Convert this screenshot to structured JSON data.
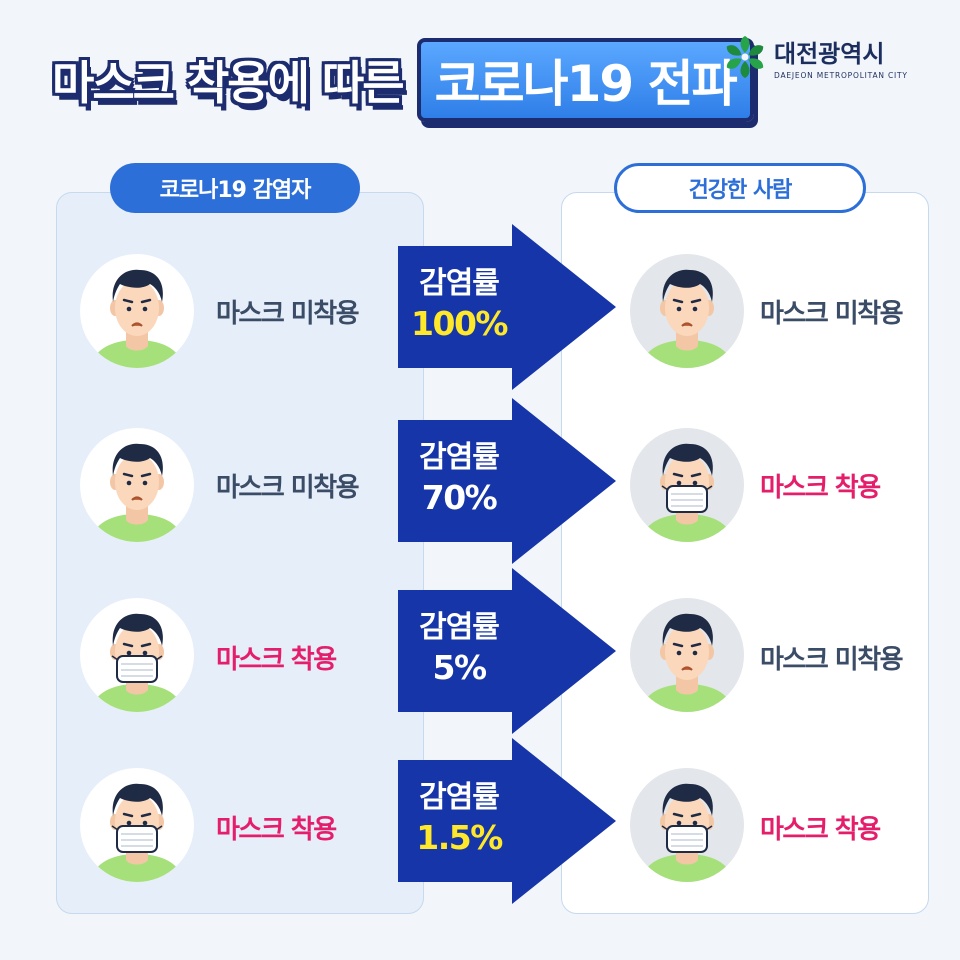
{
  "title": {
    "part1": "마스크 착용에 따른",
    "highlight": "코로나19 전파"
  },
  "logo": {
    "name": "대전광역시",
    "sub": "DAEJEON METROPOLITAN CITY"
  },
  "columns": {
    "infected": "코로나19 감염자",
    "healthy": "건강한 사람"
  },
  "rows": [
    {
      "infected_status": "마스크 미착용",
      "healthy_status": "마스크 미착용",
      "rate_label": "감염률",
      "rate": "100%"
    },
    {
      "infected_status": "마스크 미착용",
      "healthy_status": "마스크 착용",
      "rate_label": "감염률",
      "rate": "70%"
    },
    {
      "infected_status": "마스크 착용",
      "healthy_status": "마스크 미착용",
      "rate_label": "감염률",
      "rate": "5%"
    },
    {
      "infected_status": "마스크 착용",
      "healthy_status": "마스크 착용",
      "rate_label": "감염률",
      "rate": "1.5%"
    }
  ],
  "colors": {
    "arrow": "#1535a8",
    "rate_highlight": "#ffe82a",
    "rate_plain": "#ffffff",
    "masked_text": "#e41e6a",
    "unmasked_text": "#3b4c66"
  }
}
